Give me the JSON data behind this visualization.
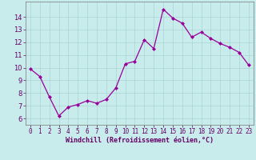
{
  "x": [
    0,
    1,
    2,
    3,
    4,
    5,
    6,
    7,
    8,
    9,
    10,
    11,
    12,
    13,
    14,
    15,
    16,
    17,
    18,
    19,
    20,
    21,
    22,
    23
  ],
  "y": [
    9.9,
    9.3,
    7.7,
    6.2,
    6.9,
    7.1,
    7.4,
    7.2,
    7.5,
    8.4,
    10.3,
    10.5,
    12.2,
    11.5,
    14.6,
    13.9,
    13.5,
    12.4,
    12.8,
    12.3,
    11.9,
    11.6,
    11.2,
    10.2
  ],
  "line_color": "#990099",
  "marker": "D",
  "marker_size": 2,
  "bg_color": "#c8ecec",
  "grid_color": "#aad4d4",
  "xlabel": "Windchill (Refroidissement éolien,°C)",
  "xlabel_color": "#660066",
  "tick_color": "#660066",
  "ylim": [
    5.5,
    15.2
  ],
  "xlim": [
    -0.5,
    23.5
  ],
  "yticks": [
    6,
    7,
    8,
    9,
    10,
    11,
    12,
    13,
    14
  ],
  "xticks": [
    0,
    1,
    2,
    3,
    4,
    5,
    6,
    7,
    8,
    9,
    10,
    11,
    12,
    13,
    14,
    15,
    16,
    17,
    18,
    19,
    20,
    21,
    22,
    23
  ],
  "tick_fontsize": 5.5,
  "xlabel_fontsize": 6.0,
  "linewidth": 0.9
}
